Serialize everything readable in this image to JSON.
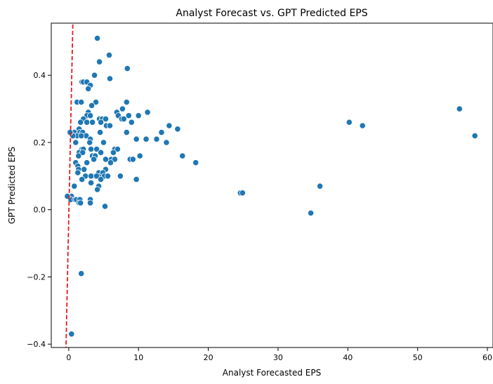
{
  "chart_data": {
    "type": "scatter",
    "title": "Analyst Forecast vs. GPT Predicted EPS",
    "xlabel": "Analyst Forecasted EPS",
    "ylabel": "GPT Predicted EPS",
    "xlim": [
      -2.5,
      60.8
    ],
    "ylim": [
      -0.41,
      0.555
    ],
    "x_ticks": [
      0,
      10,
      20,
      30,
      40,
      50,
      60
    ],
    "y_ticks": [
      -0.4,
      -0.2,
      0.0,
      0.2,
      0.4
    ],
    "x_tick_labels": [
      "0",
      "10",
      "20",
      "30",
      "40",
      "50",
      "60"
    ],
    "y_tick_labels": [
      "−0.4",
      "−0.2",
      "0.0",
      "0.2",
      "0.4"
    ],
    "grid": false,
    "point_color": "#1f77b4",
    "reference_line": {
      "style": "dashed",
      "color": "#e41a1c",
      "points": [
        [
          -0.4,
          -0.42
        ],
        [
          0.6,
          0.56
        ]
      ]
    },
    "points": [
      [
        4.1,
        0.51
      ],
      [
        5.8,
        0.46
      ],
      [
        4.4,
        0.44
      ],
      [
        8.4,
        0.42
      ],
      [
        3.7,
        0.4
      ],
      [
        5.9,
        0.39
      ],
      [
        1.9,
        0.38
      ],
      [
        2.1,
        0.38
      ],
      [
        2.6,
        0.38
      ],
      [
        3.1,
        0.37
      ],
      [
        2.8,
        0.36
      ],
      [
        1.2,
        0.32
      ],
      [
        1.8,
        0.32
      ],
      [
        3.9,
        0.32
      ],
      [
        8.3,
        0.32
      ],
      [
        3.3,
        0.31
      ],
      [
        7.7,
        0.3
      ],
      [
        2.8,
        0.29
      ],
      [
        6.9,
        0.29
      ],
      [
        11.3,
        0.29
      ],
      [
        7.1,
        0.28
      ],
      [
        8.6,
        0.28
      ],
      [
        2.6,
        0.28
      ],
      [
        3.1,
        0.28
      ],
      [
        10.0,
        0.28
      ],
      [
        7.6,
        0.27
      ],
      [
        2.1,
        0.27
      ],
      [
        4.4,
        0.27
      ],
      [
        4.8,
        0.27
      ],
      [
        5.3,
        0.27
      ],
      [
        7.9,
        0.27
      ],
      [
        2.6,
        0.26
      ],
      [
        3.4,
        0.26
      ],
      [
        1.7,
        0.26
      ],
      [
        9.0,
        0.26
      ],
      [
        4.6,
        0.26
      ],
      [
        5.4,
        0.25
      ],
      [
        5.9,
        0.25
      ],
      [
        14.4,
        0.25
      ],
      [
        1.5,
        0.24
      ],
      [
        15.6,
        0.24
      ],
      [
        0.8,
        0.23
      ],
      [
        1.6,
        0.23
      ],
      [
        2.0,
        0.23
      ],
      [
        2.5,
        0.22
      ],
      [
        4.5,
        0.23
      ],
      [
        8.3,
        0.23
      ],
      [
        13.3,
        0.23
      ],
      [
        1.2,
        0.22
      ],
      [
        1.8,
        0.22
      ],
      [
        3.1,
        0.21
      ],
      [
        0.6,
        0.22
      ],
      [
        12.6,
        0.21
      ],
      [
        11.1,
        0.21
      ],
      [
        9.7,
        0.21
      ],
      [
        14.0,
        0.2
      ],
      [
        1.0,
        0.2
      ],
      [
        3.0,
        0.2
      ],
      [
        5.0,
        0.2
      ],
      [
        1.9,
        0.18
      ],
      [
        2.1,
        0.18
      ],
      [
        3.2,
        0.18
      ],
      [
        4.0,
        0.18
      ],
      [
        6.6,
        0.18
      ],
      [
        7.0,
        0.18
      ],
      [
        1.5,
        0.17
      ],
      [
        2.0,
        0.17
      ],
      [
        4.6,
        0.17
      ],
      [
        1.4,
        0.16
      ],
      [
        3.4,
        0.16
      ],
      [
        3.8,
        0.16
      ],
      [
        10.2,
        0.16
      ],
      [
        16.3,
        0.16
      ],
      [
        6.1,
        0.15
      ],
      [
        5.3,
        0.15
      ],
      [
        8.8,
        0.15
      ],
      [
        9.2,
        0.15
      ],
      [
        3.6,
        0.15
      ],
      [
        6.6,
        0.15
      ],
      [
        1.0,
        0.14
      ],
      [
        6.0,
        0.14
      ],
      [
        2.6,
        0.14
      ],
      [
        18.2,
        0.14
      ],
      [
        5.3,
        0.12
      ],
      [
        1.3,
        0.13
      ],
      [
        2.2,
        0.12
      ],
      [
        1.4,
        0.12
      ],
      [
        1.3,
        0.11
      ],
      [
        4.3,
        0.11
      ],
      [
        3.8,
        0.1
      ],
      [
        4.6,
        0.1
      ],
      [
        4.9,
        0.11
      ],
      [
        5.1,
        0.1
      ],
      [
        5.6,
        0.1
      ],
      [
        2.4,
        0.1
      ],
      [
        3.2,
        0.1
      ],
      [
        4.0,
        0.1
      ],
      [
        4.6,
        0.09
      ],
      [
        1.9,
        0.09
      ],
      [
        7.4,
        0.1
      ],
      [
        9.7,
        0.09
      ],
      [
        0.8,
        0.07
      ],
      [
        4.3,
        0.07
      ],
      [
        3.2,
        0.08
      ],
      [
        4.1,
        0.06
      ],
      [
        24.6,
        0.05
      ],
      [
        24.9,
        0.05
      ],
      [
        36.0,
        0.07
      ],
      [
        0.4,
        0.04
      ],
      [
        0.3,
        0.03
      ],
      [
        1.2,
        0.03
      ],
      [
        0.9,
        0.03
      ],
      [
        1.1,
        0.03
      ],
      [
        1.6,
        0.03
      ],
      [
        1.5,
        0.02
      ],
      [
        1.7,
        0.02
      ],
      [
        3.1,
        0.03
      ],
      [
        3.1,
        0.02
      ],
      [
        5.2,
        0.01
      ],
      [
        34.7,
        -0.01
      ],
      [
        40.2,
        0.26
      ],
      [
        42.1,
        0.25
      ],
      [
        56.0,
        0.3
      ],
      [
        58.2,
        0.22
      ],
      [
        1.8,
        -0.19
      ],
      [
        0.4,
        -0.37
      ],
      [
        -0.2,
        0.04
      ],
      [
        0.2,
        0.23
      ],
      [
        6.4,
        0.17
      ]
    ]
  }
}
